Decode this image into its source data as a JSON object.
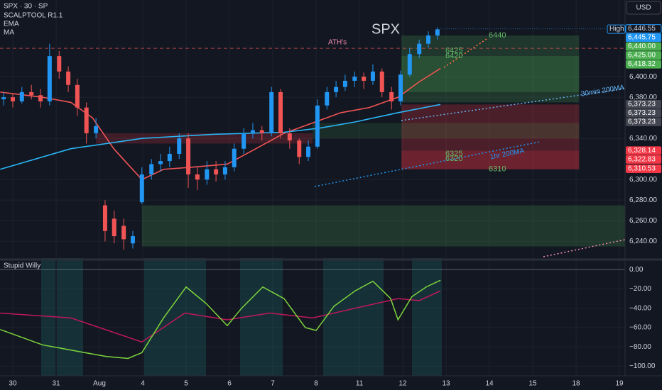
{
  "chart_data": {
    "type": "candlestick",
    "title": "SPX",
    "header": [
      "SPX · 30 · SP",
      "SCALPTOOL R1.1",
      "EMA",
      "MA"
    ],
    "currency": "USD",
    "xlim": [
      -0.295,
      14.13
    ],
    "xticks": [
      {
        "value": 0,
        "label": "30"
      },
      {
        "value": 1,
        "label": "31"
      },
      {
        "value": 2,
        "label": "Aug"
      },
      {
        "value": 3,
        "label": "4"
      },
      {
        "value": 4,
        "label": "5"
      },
      {
        "value": 5,
        "label": "6"
      },
      {
        "value": 6,
        "label": "7"
      },
      {
        "value": 7,
        "label": "8"
      },
      {
        "value": 8,
        "label": "11"
      },
      {
        "value": 9,
        "label": "12"
      },
      {
        "value": 10,
        "label": "13"
      },
      {
        "value": 11,
        "label": "14"
      },
      {
        "value": 12,
        "label": "15"
      },
      {
        "value": 13,
        "label": "18"
      },
      {
        "value": 14,
        "label": "19"
      }
    ],
    "ylim": [
      6223,
      6474.5
    ],
    "yticks": [
      {
        "value": 6240,
        "label": "6,240.00"
      },
      {
        "value": 6260,
        "label": "6,260.00"
      },
      {
        "value": 6280,
        "label": "6,280.00"
      },
      {
        "value": 6300,
        "label": "6,300.00"
      },
      {
        "value": 6340,
        "label": "6,340.00"
      },
      {
        "value": 6380,
        "label": "6,380.00"
      },
      {
        "value": 6400,
        "label": "6,400.00"
      }
    ],
    "candles": {
      "up_color": "#2196f3",
      "down_color": "#f05454",
      "x": [
        -0.21,
        0,
        0.21,
        0.43,
        0.64,
        0.85,
        1.07,
        1.28,
        1.49,
        1.7,
        1.92,
        2.13,
        2.34,
        2.56,
        2.77,
        2.98,
        3.2,
        3.41,
        3.62,
        3.84,
        4.05,
        4.26,
        4.48,
        4.69,
        4.9,
        5.11,
        5.33,
        5.54,
        5.75,
        5.97,
        6.18,
        6.39,
        6.61,
        6.82,
        7.03,
        7.25,
        7.46,
        7.67,
        7.89,
        8.1,
        8.31,
        8.52,
        8.74,
        8.95,
        9.16,
        9.38,
        9.59,
        9.8
      ],
      "open": [
        6378,
        6380,
        6376,
        6385,
        6382,
        6376,
        6420,
        6405,
        6392,
        6370,
        6345,
        6275,
        6262,
        6255,
        6238,
        6278,
        6305,
        6315,
        6318,
        6325,
        6340,
        6305,
        6300,
        6310,
        6305,
        6312,
        6330,
        6345,
        6348,
        6345,
        6385,
        6345,
        6338,
        6322,
        6332,
        6372,
        6385,
        6390,
        6396,
        6400,
        6396,
        6405,
        6385,
        6376,
        6402,
        6422,
        6432,
        6440
      ],
      "high": [
        6385,
        6384,
        6390,
        6392,
        6388,
        6432,
        6425,
        6410,
        6398,
        6375,
        6360,
        6280,
        6270,
        6262,
        6250,
        6312,
        6320,
        6325,
        6332,
        6345,
        6345,
        6312,
        6318,
        6318,
        6318,
        6335,
        6350,
        6355,
        6352,
        6390,
        6388,
        6350,
        6340,
        6338,
        6378,
        6390,
        6396,
        6402,
        6405,
        6404,
        6412,
        6408,
        6390,
        6406,
        6428,
        6436,
        6444,
        6448
      ],
      "low": [
        6372,
        6370,
        6374,
        6378,
        6370,
        6372,
        6398,
        6385,
        6362,
        6335,
        6340,
        6240,
        6238,
        6232,
        6233,
        6276,
        6300,
        6308,
        6312,
        6320,
        6292,
        6290,
        6295,
        6298,
        6300,
        6308,
        6325,
        6340,
        6338,
        6342,
        6340,
        6330,
        6315,
        6318,
        6330,
        6368,
        6380,
        6386,
        6390,
        6388,
        6392,
        6380,
        6368,
        6372,
        6400,
        6418,
        6428,
        6436
      ],
      "close": [
        6380,
        6376,
        6385,
        6382,
        6376,
        6420,
        6405,
        6392,
        6370,
        6345,
        6352,
        6250,
        6245,
        6242,
        6245,
        6305,
        6315,
        6318,
        6325,
        6340,
        6305,
        6300,
        6310,
        6305,
        6312,
        6330,
        6345,
        6348,
        6345,
        6385,
        6345,
        6338,
        6322,
        6332,
        6372,
        6385,
        6390,
        6396,
        6400,
        6396,
        6405,
        6385,
        6376,
        6402,
        6422,
        6432,
        6440,
        6446
      ]
    },
    "lines": [
      {
        "name": "EMA",
        "color": "#f05454",
        "x": [
          -0.29,
          0.69,
          1.34,
          1.84,
          2.33,
          2.98,
          3.48,
          4.13,
          4.95,
          5.61,
          6.26,
          6.92,
          7.57,
          8.23,
          8.89,
          9.38,
          9.87
        ],
        "values": [
          6385,
          6380,
          6375,
          6360,
          6330,
          6300,
          6310,
          6312,
          6315,
          6330,
          6345,
          6355,
          6365,
          6370,
          6380,
          6395,
          6408
        ]
      },
      {
        "name": "MA",
        "color": "#29b6f6",
        "x": [
          -0.29,
          1.34,
          2.98,
          4.62,
          6.26,
          7.08,
          7.9,
          8.89,
          9.87
        ],
        "values": [
          6310,
          6330,
          6340,
          6344,
          6346,
          6350,
          6356,
          6365,
          6373
        ]
      }
    ],
    "zones": [
      {
        "x": [
          8.97,
          13.07
        ],
        "y": [
          6375,
          6440
        ],
        "color": "rgba(76,175,80,0.22)"
      },
      {
        "x": [
          8.97,
          13.07
        ],
        "y": [
          6385,
          6420
        ],
        "color": "rgba(76,175,80,0.22)"
      },
      {
        "x": [
          8.97,
          13.07
        ],
        "y": [
          6310,
          6373
        ],
        "color": "rgba(242,54,69,0.25)"
      },
      {
        "x": [
          8.97,
          13.07
        ],
        "y": [
          6310,
          6328
        ],
        "color": "rgba(242,54,69,0.2)"
      },
      {
        "x": [
          6.92,
          13.07
        ],
        "y": [
          6340,
          6355
        ],
        "color": "rgba(76,175,80,0.15)"
      },
      {
        "x": [
          2.98,
          14.13
        ],
        "y": [
          6235,
          6275
        ],
        "color": "rgba(76,175,80,0.22)"
      },
      {
        "x": [
          1.92,
          6.92
        ],
        "y": [
          6335,
          6345
        ],
        "color": "rgba(242,54,69,0.2)"
      }
    ],
    "ath": {
      "label": "ATH's",
      "value": 6427.6,
      "color": "#f05454"
    },
    "level_labels": [
      6440,
      6425,
      6420,
      6325,
      6320,
      6310
    ],
    "price_tags": [
      {
        "value": 6446.55,
        "label": "6,446.55",
        "color": "#131722",
        "text": "#d1d4dc"
      },
      {
        "value": 6445.75,
        "label": "6,445.75",
        "color": "#2196f3",
        "text": "#ffffff"
      },
      {
        "value": 6440,
        "label": "6,440.00",
        "color": "#4caf50",
        "text": "#ffffff"
      },
      {
        "value": 6425,
        "label": "6,425.00",
        "color": "#4caf50",
        "text": "#ffffff"
      },
      {
        "value": 6418.32,
        "label": "6,418.32",
        "color": "#4caf50",
        "text": "#ffffff"
      },
      {
        "value": 6373.23,
        "label": "6,373.23",
        "color": "#434651",
        "text": "#ffffff"
      },
      {
        "value": 6373.23,
        "label": "6,373.23",
        "color": "#434651",
        "text": "#ffffff"
      },
      {
        "value": 6373.23,
        "label": "6,373.23",
        "color": "#434651",
        "text": "#ffffff"
      },
      {
        "value": 6328.14,
        "label": "6,328.14",
        "color": "#f23645",
        "text": "#ffffff"
      },
      {
        "value": 6322.83,
        "label": "6,322.83",
        "color": "#f23645",
        "text": "#ffffff"
      },
      {
        "value": 6310.53,
        "label": "6,310.53",
        "color": "#f23645",
        "text": "#ffffff"
      }
    ],
    "high_label": "High",
    "annotations": [
      "30min 200MA",
      "1hr 200MA"
    ],
    "oscillator": {
      "name": "Stupid Willy",
      "ylim": [
        -110,
        9
      ],
      "yticks": [
        {
          "value": 0,
          "label": "0.00"
        },
        {
          "value": -20,
          "label": "−20.00"
        },
        {
          "value": -40,
          "label": "−40.00"
        },
        {
          "value": -60,
          "label": "−60.00"
        },
        {
          "value": -80,
          "label": "−80.00"
        },
        {
          "value": -100,
          "label": "−100.00"
        }
      ],
      "series": [
        {
          "color": "#c2185b",
          "x": [
            -0.29,
            1.34,
            2.98,
            3.97,
            4.95,
            5.93,
            6.92,
            7.9,
            8.89,
            9.38,
            9.87
          ],
          "values": [
            -45,
            -50,
            -75,
            -45,
            -52,
            -45,
            -50,
            -40,
            -30,
            -32,
            -22
          ]
        },
        {
          "color": "#7cd63b",
          "x": [
            -0.29,
            0.2,
            0.69,
            1.18,
            1.67,
            2.16,
            2.66,
            2.98,
            3.48,
            4,
            4.46,
            4.95,
            5.28,
            5.77,
            6.26,
            6.75,
            7,
            7.41,
            7.9,
            8.31,
            8.72,
            8.89,
            9.21,
            9.54,
            9.87
          ],
          "values": [
            -62,
            -70,
            -78,
            -82,
            -86,
            -90,
            -92,
            -86,
            -50,
            -18,
            -35,
            -58,
            -40,
            -18,
            -30,
            -60,
            -63,
            -38,
            -22,
            -12,
            -30,
            -52,
            -28,
            -18,
            -11
          ]
        }
      ]
    }
  }
}
